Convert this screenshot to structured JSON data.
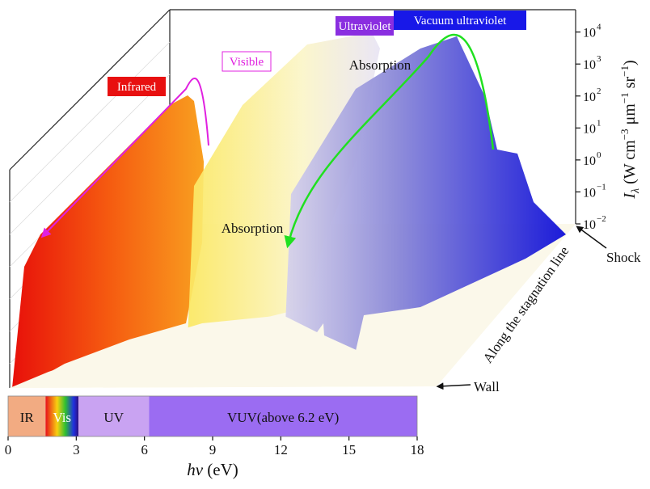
{
  "chart_data": {
    "type": "surface3d",
    "labels": {
      "infrared": "Infrared",
      "visible": "Visible",
      "ultraviolet": "Ultraviolet",
      "vacuum_ultraviolet": "Vacuum ultraviolet",
      "absorption_upper": "Absorption",
      "absorption_lower": "Absorption",
      "shock": "Shock",
      "wall": "Wall",
      "depth_axis": "Along the stagnation line"
    },
    "x_label": [
      "hv",
      " (eV)"
    ],
    "y_label": [
      "I",
      "λ",
      " (W cm",
      "−3",
      " μm",
      "−1",
      " sr",
      "−1",
      ")"
    ],
    "xlim": [
      0,
      18
    ],
    "xticks": [
      0,
      3,
      6,
      9,
      12,
      15,
      18
    ],
    "ylim": [
      0.01,
      50000
    ],
    "log_y": true,
    "yticks": [
      {
        "value": 0.01,
        "label": "10",
        "exponent": "−2"
      },
      {
        "value": 0.1,
        "label": "10",
        "exponent": "−1"
      },
      {
        "value": 1,
        "label": "10",
        "exponent": "0"
      },
      {
        "value": 10,
        "label": "10",
        "exponent": "1"
      },
      {
        "value": 100,
        "label": "10",
        "exponent": "2"
      },
      {
        "value": 1000,
        "label": "10",
        "exponent": "3"
      },
      {
        "value": 10000,
        "label": "10",
        "exponent": "4"
      }
    ],
    "bands": [
      {
        "label": "IR",
        "start": 0,
        "end": 1.65,
        "color": "#f2ab82"
      },
      {
        "label": "Vis",
        "start": 1.65,
        "end": 3.1,
        "color": "#e8401c"
      },
      {
        "label": "UV",
        "start": 3.1,
        "end": 6.2,
        "color": "#c9a3f2"
      },
      {
        "label": "VUV(above 6.2 eV)",
        "start": 6.2,
        "end": 18,
        "color": "#9b6cf2"
      }
    ]
  }
}
